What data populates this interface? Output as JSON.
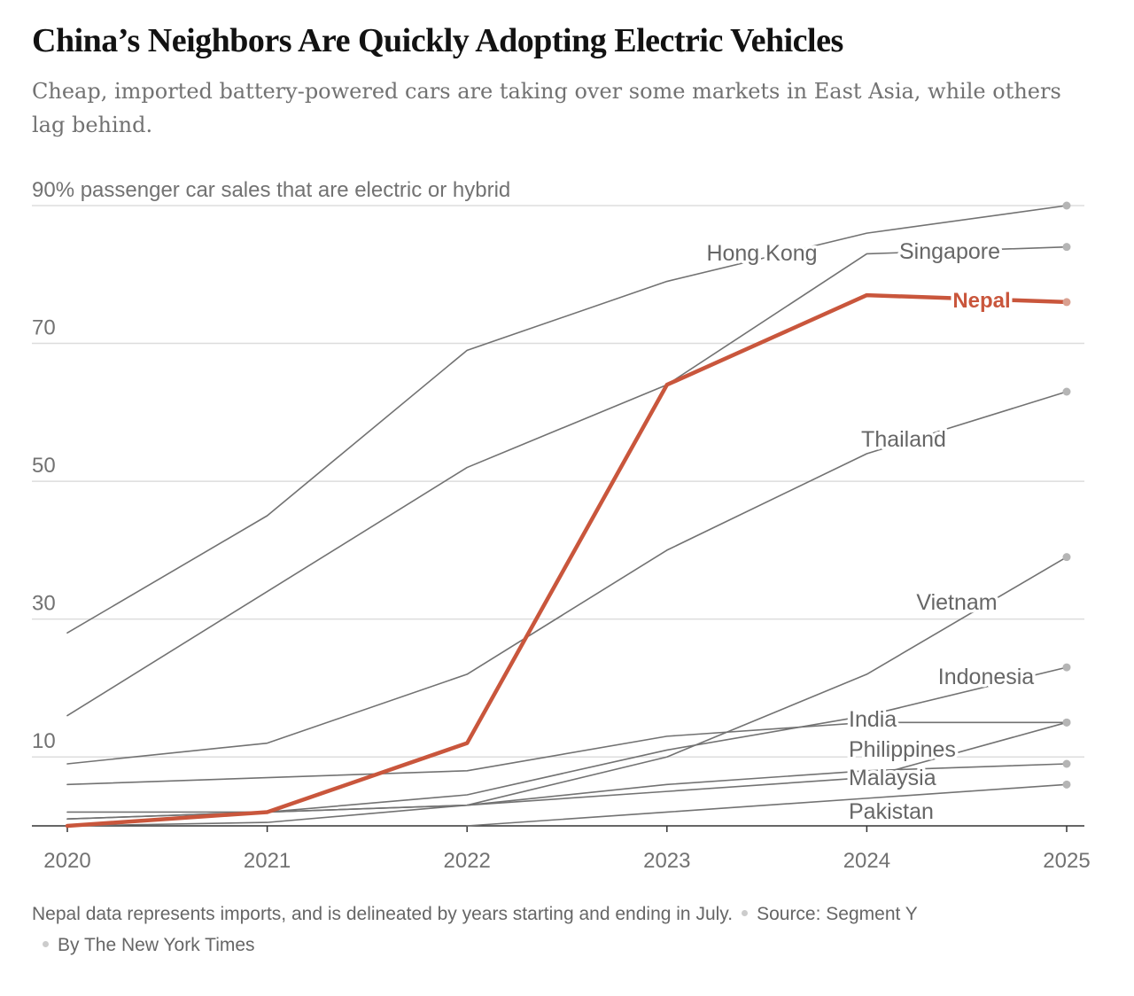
{
  "header": {
    "title": "China’s Neighbors Are Quickly Adopting Electric Vehicles",
    "subtitle": "Cheap, imported battery-powered cars are taking over some markets in East Asia, while others lag behind."
  },
  "chart_data": {
    "type": "line",
    "ylabel": "90% passenger car sales that are electric or hybrid",
    "ylim": [
      0,
      90
    ],
    "yticks": [
      {
        "value": 90,
        "label": "90% passenger car sales that are electric or hybrid"
      },
      {
        "value": 70,
        "label": "70"
      },
      {
        "value": 50,
        "label": "50"
      },
      {
        "value": 30,
        "label": "30"
      },
      {
        "value": 10,
        "label": "10"
      }
    ],
    "x": [
      "2020",
      "2021",
      "2022",
      "2023",
      "2024",
      "2025"
    ],
    "grid": true,
    "series": [
      {
        "name": "Hong Kong",
        "values": [
          28,
          45,
          69,
          79,
          86,
          90
        ],
        "color": "#727272",
        "highlight": false
      },
      {
        "name": "Singapore",
        "values": [
          16,
          34,
          52,
          64,
          83,
          84
        ],
        "color": "#727272",
        "highlight": false
      },
      {
        "name": "Thailand",
        "values": [
          9,
          12,
          22,
          40,
          54,
          63
        ],
        "color": "#727272",
        "highlight": false
      },
      {
        "name": "Vietnam",
        "values": [
          0,
          0.5,
          3,
          10,
          22,
          39
        ],
        "color": "#727272",
        "highlight": false
      },
      {
        "name": "Indonesia",
        "values": [
          1,
          2,
          4.5,
          11,
          16,
          23
        ],
        "color": "#727272",
        "highlight": false
      },
      {
        "name": "India",
        "values": [
          6,
          7,
          8,
          13,
          15,
          15
        ],
        "color": "#727272",
        "highlight": false
      },
      {
        "name": "Philippines",
        "values": [
          2,
          2,
          3,
          5,
          7,
          15
        ],
        "color": "#727272",
        "highlight": false
      },
      {
        "name": "Malaysia",
        "values": [
          1,
          2,
          3,
          6,
          8,
          9
        ],
        "color": "#727272",
        "highlight": false
      },
      {
        "name": "Pakistan",
        "values": [
          null,
          null,
          0,
          2,
          4,
          6
        ],
        "color": "#727272",
        "highlight": false
      },
      {
        "name": "Nepal",
        "values": [
          0,
          2,
          12,
          64,
          77,
          76
        ],
        "color": "#c9563c",
        "highlight": true
      }
    ]
  },
  "footer": {
    "note": "Nepal data represents imports, and is delineated by years starting and ending in July.",
    "source": "Source: Segment Y",
    "credit": "By The New York Times"
  }
}
